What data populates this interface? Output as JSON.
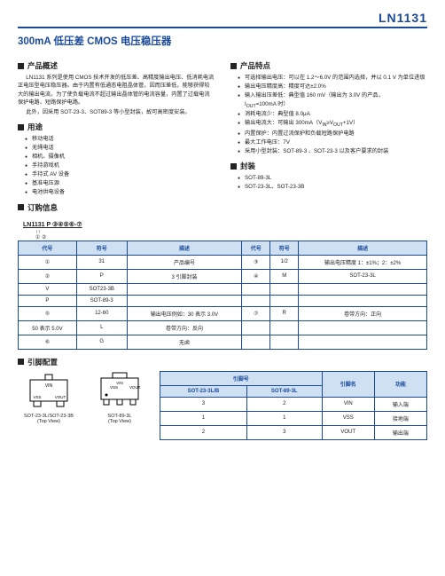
{
  "header": {
    "part_number": "LN1131"
  },
  "title": "300mA 低压差 CMOS 电压稳压器",
  "sections": {
    "overview_h": "产品概述",
    "overview_p1": "LN1131 系列是使用 CMOS 技术开发的低压差、高精度输出电压、低消耗电流正电压型电压稳压器。由于内置有低通态电阻晶体管，因而压差低，能够获得较大的输出电流。为了使负载电流不超过输出晶体管的电流容量，内置了过载电流保护电路、短路保护电路。",
    "overview_p2": "此外，因采用 SOT-23-3、SOT89-3 等小型封装，故可高密度安装。",
    "uses_h": "用途",
    "uses": [
      "移动电话",
      "无绳电话",
      "相机、摄像机",
      "手持游戏机",
      "手持式 AV 设备",
      "基准电压源",
      "电池供电设备"
    ],
    "order_h": "订购信息",
    "features_h": "产品特点",
    "features": [
      "可选择输出电压：可以在 1.2～6.0V 的范围内选择，并以 0.1 V 为单位进级",
      "输出电压精度高：精度可达±2.0%",
      "输入输出压差低：典型值 160 mV（输出为 3.0V 的产品，I<sub>OUT</sub>=100mA 时）",
      "消耗电流少：典型值 8.0μA",
      "输出电流大：可输出 300mA（V<sub>IN</sub>≥V<sub>OUT</sub>+1V）",
      "内置保护：内置过流保护和负载短路保护电路",
      "最大工作电压：7V",
      "采用小型封装：SOT-89-3 、SOT-23-3 以及客户要求的封装"
    ],
    "package_h": "封装",
    "packages": [
      "SOT-89-3L",
      "SOT-23-3L、SOT-23-3B"
    ],
    "pin_h": "引脚配置"
  },
  "order": {
    "example": "LN1131 P ③④⑤⑥-⑦",
    "arrows": "↑↑",
    "nums": "① ②",
    "headers": [
      "代号",
      "符号",
      "描述",
      "代号",
      "符号",
      "描述"
    ],
    "rows": [
      [
        "①",
        "31",
        "产品编号",
        "③",
        "1/2",
        "输出电压精度 1：±1%；2：±2%"
      ],
      [
        "②",
        "P",
        "3 引脚封装",
        "④",
        "M",
        "SOT-23-3L"
      ],
      [
        "",
        "",
        "",
        "",
        "V",
        "SOT23-3B"
      ],
      [
        "",
        "",
        "",
        "",
        "P",
        "SOT-89-3"
      ],
      [
        "⑤",
        "12-60",
        "输出电压例如：30 表示 3.0V",
        "⑦",
        "R",
        "卷带方向：正向"
      ],
      [
        "",
        "",
        "50 表示 5.0V",
        "",
        "L",
        "卷带方向：反向"
      ],
      [
        "⑥",
        "G",
        "无卤",
        "",
        "",
        ""
      ]
    ]
  },
  "pins": {
    "chip1_label": "SOT-23-3L/SOT-23-3B\n(Top View)",
    "chip2_label": "SOT-89-3L\n(Top View)",
    "pin_labels": {
      "vin": "VIN",
      "vss": "VSS",
      "vout": "VOUT"
    },
    "header_top": "引脚号",
    "headers": [
      "SOT-23-3L/B",
      "SOT-89-3L",
      "引脚名",
      "功能"
    ],
    "rows": [
      [
        "3",
        "2",
        "VIN",
        "输入端"
      ],
      [
        "1",
        "1",
        "VSS",
        "接地端"
      ],
      [
        "2",
        "3",
        "VOUT",
        "输出端"
      ]
    ]
  },
  "style": {
    "accent": "#1a4a9c",
    "th_bg": "#cfe0f2"
  }
}
